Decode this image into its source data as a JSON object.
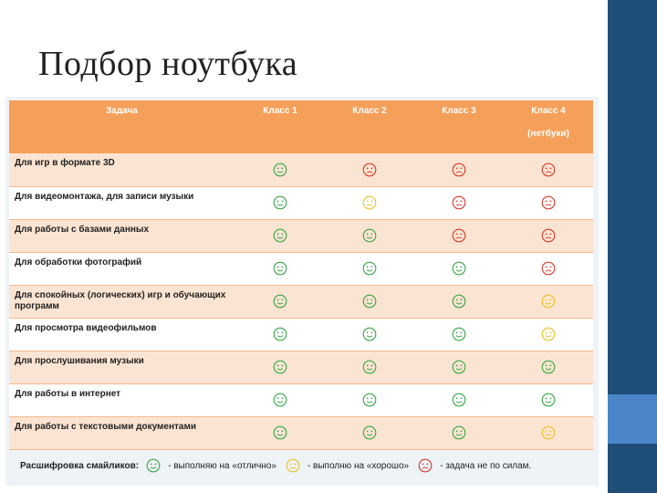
{
  "slide": {
    "title": "Подбор ноутбука"
  },
  "table": {
    "headers": {
      "task": "Задача",
      "classes": [
        "Класс 1",
        "Класс 2",
        "Класс 3",
        "Класс 4"
      ],
      "class4_note": "(нетбуки)"
    },
    "rows": [
      {
        "task": "Для игр в формате 3D",
        "ratings": [
          "excellent",
          "bad",
          "bad",
          "bad"
        ]
      },
      {
        "task": "Для видеомонтажа, для записи музыки",
        "ratings": [
          "excellent",
          "good",
          "bad",
          "bad"
        ]
      },
      {
        "task": "Для работы с базами данных",
        "ratings": [
          "excellent",
          "excellent",
          "bad",
          "bad"
        ]
      },
      {
        "task": "Для обработки фотографий",
        "ratings": [
          "excellent",
          "excellent",
          "excellent",
          "bad"
        ]
      },
      {
        "task": "Для спокойных (логических) игр и обучающих программ",
        "ratings": [
          "excellent",
          "excellent",
          "excellent",
          "good"
        ]
      },
      {
        "task": "Для просмотра видеофильмов",
        "ratings": [
          "excellent",
          "excellent",
          "excellent",
          "good"
        ]
      },
      {
        "task": "Для прослушивания музыки",
        "ratings": [
          "excellent",
          "excellent",
          "excellent",
          "excellent"
        ]
      },
      {
        "task": "Для работы в интернет",
        "ratings": [
          "excellent",
          "excellent",
          "excellent",
          "excellent"
        ]
      },
      {
        "task": "Для работы с текстовыми документами",
        "ratings": [
          "excellent",
          "excellent",
          "excellent",
          "good"
        ]
      }
    ]
  },
  "legend": {
    "title": "Расшифровка смайликов:",
    "items": [
      {
        "rating": "excellent",
        "label": "- выполняю на «отлично»"
      },
      {
        "rating": "good",
        "label": "- выполню на «хорошо»"
      },
      {
        "rating": "bad",
        "label": "- задача не по силам."
      }
    ]
  },
  "colors": {
    "excellent": "#3aa648",
    "good": "#e8c22a",
    "bad": "#d83a2e",
    "header": "#f5a05a",
    "side_bar": "#1f4e79",
    "side_accent": "#4a86c8"
  }
}
